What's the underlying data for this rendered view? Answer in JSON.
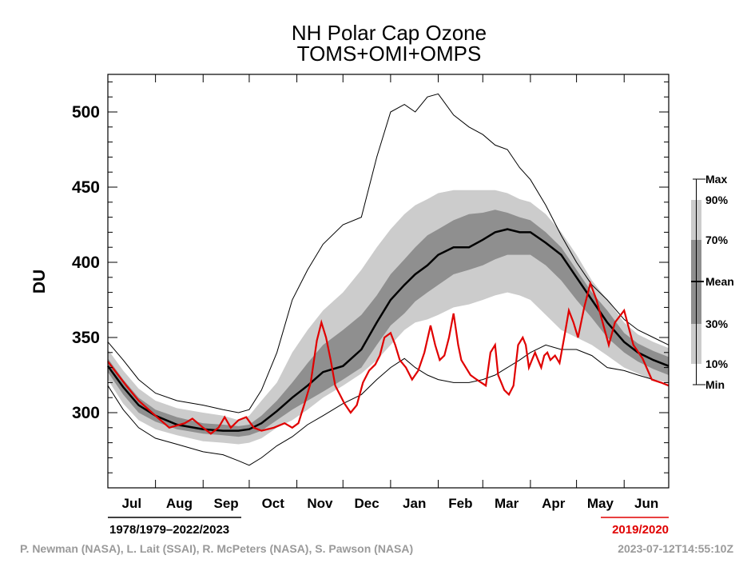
{
  "chart_data": {
    "type": "area",
    "title": "NH Polar Cap Ozone",
    "subtitle": "TOMS+OMI+OMPS",
    "ylabel": "DU",
    "ylim": [
      250,
      525
    ],
    "yticks": [
      300,
      350,
      400,
      450,
      500
    ],
    "ytick_labels": [
      "300",
      "350",
      "400",
      "450",
      "500"
    ],
    "xlim": [
      0,
      365
    ],
    "months": [
      "Jul",
      "Aug",
      "Sep",
      "Oct",
      "Nov",
      "Dec",
      "Jan",
      "Feb",
      "Mar",
      "Apr",
      "May",
      "Jun"
    ],
    "month_starts": [
      0,
      31,
      62,
      92,
      123,
      153,
      184,
      215,
      244,
      275,
      305,
      336
    ],
    "climatology": {
      "period": "1978/1979–2022/2023",
      "x": [
        0,
        10,
        20,
        31,
        45,
        62,
        75,
        85,
        92,
        100,
        110,
        120,
        130,
        140,
        153,
        165,
        175,
        184,
        193,
        200,
        208,
        215,
        225,
        235,
        244,
        252,
        260,
        268,
        275,
        285,
        295,
        305,
        315,
        325,
        336,
        345,
        355,
        365
      ],
      "max": [
        347,
        335,
        322,
        313,
        308,
        305,
        302,
        300,
        302,
        315,
        340,
        375,
        395,
        412,
        425,
        430,
        470,
        500,
        505,
        500,
        510,
        512,
        498,
        490,
        485,
        478,
        475,
        463,
        455,
        438,
        418,
        400,
        385,
        375,
        362,
        355,
        350,
        345
      ],
      "p90": [
        342,
        328,
        316,
        308,
        303,
        300,
        298,
        295,
        298,
        308,
        320,
        340,
        355,
        368,
        380,
        395,
        410,
        422,
        432,
        438,
        442,
        446,
        448,
        448,
        448,
        448,
        446,
        442,
        440,
        432,
        420,
        405,
        388,
        375,
        360,
        352,
        347,
        343
      ],
      "p70": [
        336,
        322,
        310,
        302,
        297,
        293,
        292,
        291,
        292,
        298,
        308,
        320,
        333,
        345,
        355,
        365,
        378,
        392,
        402,
        410,
        418,
        422,
        428,
        432,
        433,
        435,
        433,
        430,
        428,
        420,
        410,
        395,
        380,
        368,
        353,
        346,
        341,
        337
      ],
      "mean": [
        331,
        317,
        305,
        298,
        292,
        289,
        288,
        288,
        289,
        293,
        301,
        310,
        318,
        327,
        331,
        342,
        360,
        375,
        385,
        392,
        398,
        405,
        410,
        410,
        415,
        420,
        422,
        420,
        420,
        413,
        405,
        390,
        375,
        360,
        347,
        340,
        335,
        331
      ],
      "p30": [
        327,
        312,
        300,
        294,
        289,
        286,
        285,
        284,
        285,
        288,
        295,
        302,
        308,
        314,
        322,
        330,
        345,
        358,
        366,
        374,
        380,
        385,
        392,
        395,
        398,
        402,
        405,
        405,
        405,
        398,
        388,
        375,
        363,
        350,
        340,
        334,
        329,
        325
      ],
      "p10": [
        322,
        306,
        295,
        289,
        285,
        281,
        280,
        279,
        280,
        283,
        290,
        295,
        302,
        310,
        318,
        326,
        335,
        345,
        355,
        360,
        362,
        365,
        370,
        372,
        375,
        378,
        380,
        378,
        375,
        365,
        355,
        350,
        345,
        338,
        330,
        326,
        322,
        320
      ],
      "min": [
        318,
        302,
        290,
        283,
        279,
        274,
        272,
        268,
        265,
        270,
        278,
        284,
        292,
        298,
        306,
        312,
        322,
        330,
        336,
        330,
        325,
        322,
        320,
        320,
        322,
        325,
        330,
        335,
        340,
        345,
        342,
        342,
        338,
        330,
        328,
        325,
        322,
        318
      ]
    },
    "current": {
      "name": "2019/2020",
      "color": "#e00000",
      "x": [
        0,
        6,
        12,
        20,
        31,
        40,
        50,
        55,
        62,
        67,
        72,
        76,
        80,
        85,
        90,
        95,
        100,
        108,
        115,
        120,
        124,
        128,
        132,
        136,
        139,
        142,
        145,
        148,
        151,
        154,
        158,
        162,
        166,
        170,
        174,
        177,
        180,
        184,
        187,
        190,
        194,
        198,
        202,
        206,
        210,
        213,
        216,
        219,
        222,
        225,
        228,
        230,
        233,
        236,
        240,
        243,
        246,
        249,
        252,
        254,
        256,
        258,
        261,
        264,
        267,
        270,
        272,
        274,
        276,
        278,
        280,
        282,
        284,
        286,
        288,
        291,
        294,
        297,
        300,
        303,
        306,
        310,
        314,
        318,
        322,
        326,
        330,
        336,
        342,
        348,
        354,
        360,
        365
      ],
      "y": [
        334,
        326,
        318,
        308,
        298,
        290,
        293,
        296,
        290,
        286,
        290,
        297,
        290,
        295,
        297,
        290,
        288,
        290,
        293,
        290,
        293,
        306,
        320,
        348,
        360,
        350,
        335,
        318,
        312,
        306,
        300,
        305,
        320,
        328,
        332,
        338,
        350,
        353,
        345,
        335,
        330,
        322,
        328,
        340,
        358,
        345,
        335,
        338,
        350,
        366,
        345,
        335,
        330,
        325,
        322,
        320,
        318,
        340,
        345,
        325,
        320,
        315,
        312,
        318,
        345,
        350,
        345,
        330,
        335,
        340,
        335,
        330,
        338,
        340,
        335,
        338,
        333,
        350,
        368,
        360,
        350,
        370,
        386,
        375,
        360,
        345,
        360,
        368,
        345,
        336,
        322,
        320,
        318
      ]
    },
    "legend": [
      "Max",
      "90%",
      "70%",
      "Mean",
      "30%",
      "10%",
      "Min"
    ],
    "colors": {
      "band_outer": "#cccccc",
      "band_inner": "#8f8f8f",
      "mean_line": "#000000",
      "current_line": "#e00000"
    }
  },
  "credits": {
    "authors": "P. Newman (NASA), L. Lait (SSAI), R. McPeters (NASA), S. Pawson (NASA)",
    "timestamp": "2023-07-12T14:55:10Z"
  }
}
